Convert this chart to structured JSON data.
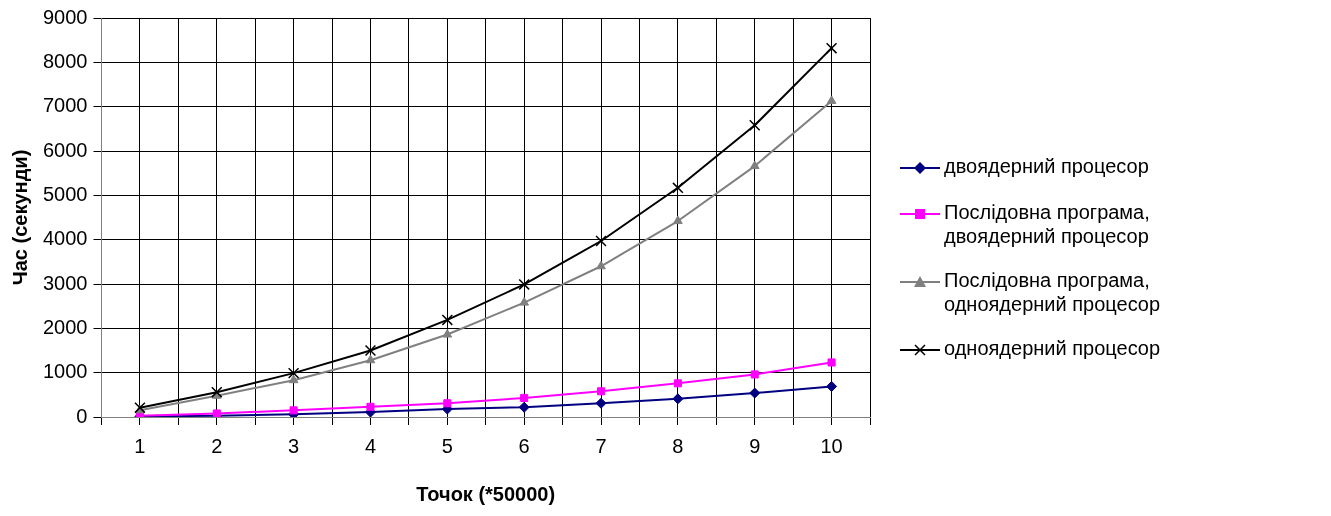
{
  "chart_data": {
    "type": "line",
    "xlabel": "Точок (*50000)",
    "ylabel": "Час (секунди)",
    "x": [
      1,
      2,
      3,
      4,
      5,
      6,
      7,
      8,
      9,
      10
    ],
    "xlim": [
      0.5,
      10.5
    ],
    "xticks": [
      {
        "value": 0.5,
        "label": null
      },
      1,
      {
        "value": 1.5,
        "label": null
      },
      2,
      {
        "value": 2.5,
        "label": null
      },
      3,
      {
        "value": 3.5,
        "label": null
      },
      4,
      {
        "value": 4.5,
        "label": null
      },
      5,
      {
        "value": 5.5,
        "label": null
      },
      6,
      {
        "value": 6.5,
        "label": null
      },
      7,
      {
        "value": 7.5,
        "label": null
      },
      8,
      {
        "value": 8.5,
        "label": null
      },
      9,
      {
        "value": 9.5,
        "label": null
      },
      10,
      {
        "value": 10.5,
        "label": null
      }
    ],
    "ylim": [
      0,
      9000
    ],
    "yticks": [
      0,
      1000,
      2000,
      3000,
      4000,
      5000,
      6000,
      7000,
      8000,
      9000
    ],
    "grid": true,
    "legend": "right",
    "line_style": "solid",
    "series": [
      {
        "name": "двоядерний процесор",
        "color": "#000080",
        "marker": "diamond",
        "values": [
          10,
          30,
          60,
          110,
          180,
          220,
          310,
          410,
          540,
          690
        ]
      },
      {
        "name": "Послідовна програма, двоядерний процесор",
        "color": "#ff00ff",
        "marker": "square",
        "values": [
          30,
          80,
          150,
          230,
          310,
          430,
          580,
          760,
          960,
          1230
        ]
      },
      {
        "name": "Послідовна програма, одноядерний процесор",
        "color": "#808080",
        "marker": "triangle",
        "values": [
          150,
          480,
          830,
          1280,
          1860,
          2580,
          3400,
          4420,
          5660,
          7130
        ]
      },
      {
        "name": "одноядерний процесор",
        "color": "#000000",
        "marker": "cross",
        "values": [
          210,
          560,
          990,
          1500,
          2190,
          2990,
          3970,
          5170,
          6580,
          8320
        ]
      }
    ]
  }
}
